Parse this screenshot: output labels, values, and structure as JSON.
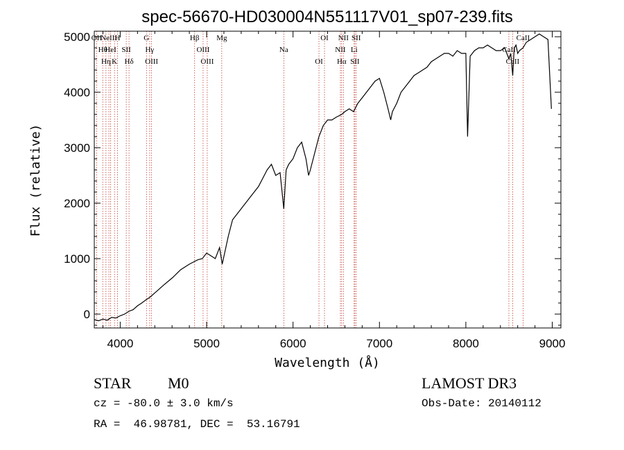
{
  "chart_data": {
    "type": "line",
    "title": "spec-56670-HD030004N551117V01_sp07-239.fits",
    "xlabel": "Wavelength (Å)",
    "ylabel": "Flux (relative)",
    "xlim": [
      3700,
      9100
    ],
    "ylim": [
      -250,
      5100
    ],
    "xticks": [
      4000,
      5000,
      6000,
      7000,
      8000,
      9000
    ],
    "yticks": [
      0,
      1000,
      2000,
      3000,
      4000,
      5000
    ],
    "grid": false,
    "series": [
      {
        "name": "flux",
        "x": [
          3700,
          3750,
          3800,
          3850,
          3900,
          3950,
          4000,
          4050,
          4100,
          4150,
          4200,
          4250,
          4300,
          4340,
          4400,
          4500,
          4600,
          4700,
          4800,
          4861,
          4900,
          4950,
          5000,
          5050,
          5100,
          5150,
          5180,
          5250,
          5300,
          5400,
          5500,
          5600,
          5700,
          5750,
          5800,
          5850,
          5893,
          5920,
          5950,
          6000,
          6050,
          6100,
          6150,
          6180,
          6200,
          6250,
          6300,
          6350,
          6400,
          6450,
          6500,
          6563,
          6600,
          6650,
          6700,
          6750,
          6800,
          6850,
          6900,
          6950,
          7000,
          7050,
          7100,
          7130,
          7150,
          7200,
          7250,
          7300,
          7350,
          7400,
          7450,
          7500,
          7550,
          7600,
          7650,
          7700,
          7750,
          7800,
          7850,
          7900,
          7950,
          8000,
          8020,
          8050,
          8100,
          8150,
          8200,
          8250,
          8300,
          8350,
          8400,
          8450,
          8498,
          8520,
          8542,
          8560,
          8580,
          8600,
          8620,
          8662,
          8700,
          8750,
          8800,
          8850,
          8900,
          8950,
          8990
        ],
        "values": [
          -100,
          -120,
          -90,
          -110,
          -60,
          -70,
          -30,
          0,
          50,
          80,
          150,
          200,
          260,
          300,
          380,
          520,
          650,
          800,
          900,
          950,
          980,
          1000,
          1100,
          1050,
          1000,
          1200,
          900,
          1400,
          1700,
          1900,
          2100,
          2300,
          2600,
          2700,
          2500,
          2550,
          1900,
          2600,
          2700,
          2800,
          3000,
          3100,
          2800,
          2500,
          2600,
          2900,
          3200,
          3400,
          3500,
          3500,
          3550,
          3600,
          3650,
          3700,
          3650,
          3800,
          3900,
          4000,
          4100,
          4200,
          4250,
          4000,
          3700,
          3500,
          3650,
          3800,
          4000,
          4100,
          4200,
          4300,
          4350,
          4400,
          4450,
          4550,
          4600,
          4650,
          4700,
          4700,
          4650,
          4750,
          4700,
          4700,
          3200,
          4650,
          4750,
          4800,
          4800,
          4850,
          4800,
          4750,
          4750,
          4800,
          4600,
          4700,
          4300,
          4800,
          4850,
          4700,
          4750,
          4800,
          4900,
          4950,
          5000,
          5050,
          5000,
          4950,
          3700
        ]
      }
    ],
    "lines": [
      {
        "wl": 3727,
        "label": "OII"
      },
      {
        "wl": 3798,
        "label": "Hθ"
      },
      {
        "wl": 3835,
        "label": "Hη"
      },
      {
        "wl": 3869,
        "label": "NeIII"
      },
      {
        "wl": 3889,
        "label": "HeI"
      },
      {
        "wl": 3934,
        "label": "K"
      },
      {
        "wl": 3969,
        "label": "H"
      },
      {
        "wl": 4070,
        "label": "SII"
      },
      {
        "wl": 4102,
        "label": "Hδ"
      },
      {
        "wl": 4304,
        "label": "G"
      },
      {
        "wl": 4341,
        "label": "Hγ"
      },
      {
        "wl": 4363,
        "label": "OIII"
      },
      {
        "wl": 4861,
        "label": "Hβ"
      },
      {
        "wl": 4959,
        "label": "OIII"
      },
      {
        "wl": 5007,
        "label": "OIII"
      },
      {
        "wl": 5175,
        "label": "Mg"
      },
      {
        "wl": 5893,
        "label": "Na"
      },
      {
        "wl": 6300,
        "label": "OI"
      },
      {
        "wl": 6364,
        "label": "OI"
      },
      {
        "wl": 6548,
        "label": "NII"
      },
      {
        "wl": 6563,
        "label": "Hα"
      },
      {
        "wl": 6583,
        "label": "NII"
      },
      {
        "wl": 6707,
        "label": "Li"
      },
      {
        "wl": 6716,
        "label": "SII"
      },
      {
        "wl": 6731,
        "label": "SII"
      },
      {
        "wl": 8498,
        "label": "CaII"
      },
      {
        "wl": 8542,
        "label": "CaII"
      },
      {
        "wl": 8662,
        "label": "CaII"
      }
    ]
  },
  "info": {
    "object_type": "STAR",
    "subclass": "M0",
    "survey": "LAMOST DR3",
    "cz": "cz = -80.0 ± 3.0 km/s",
    "obs_date": "Obs-Date: 20140112",
    "coords": "RA =  46.98781, DEC =  53.16791"
  },
  "colors": {
    "spectrum": "#000000",
    "line_marker": "#c0392b",
    "axis": "#000000"
  }
}
